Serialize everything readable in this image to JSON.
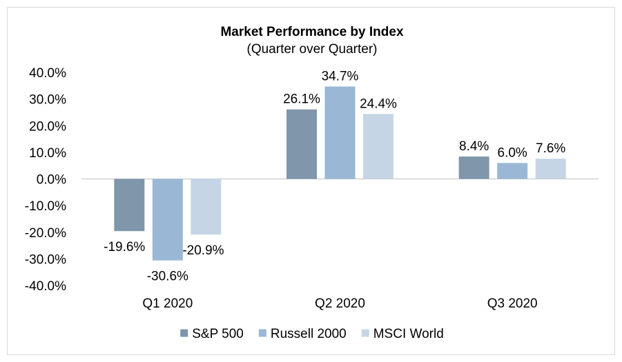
{
  "chart_data": {
    "type": "bar",
    "title": "Market Performance by Index",
    "subtitle": "(Quarter over Quarter)",
    "categories": [
      "Q1 2020",
      "Q2 2020",
      "Q3 2020"
    ],
    "series": [
      {
        "name": "S&P 500",
        "color": "#7f96ab",
        "values": [
          -19.6,
          26.1,
          8.4
        ],
        "labels": [
          "-19.6%",
          "26.1%",
          "8.4%"
        ]
      },
      {
        "name": "Russell 2000",
        "color": "#9ab8d6",
        "values": [
          -30.6,
          34.7,
          6.0
        ],
        "labels": [
          "-30.6%",
          "34.7%",
          "6.0%"
        ]
      },
      {
        "name": "MSCI World",
        "color": "#c5d5e6",
        "values": [
          -20.9,
          24.4,
          7.6
        ],
        "labels": [
          "-20.9%",
          "24.4%",
          "7.6%"
        ]
      }
    ],
    "y_ticks": [
      "40.0%",
      "30.0%",
      "20.0%",
      "10.0%",
      "0.0%",
      "-10.0%",
      "-20.0%",
      "-30.0%",
      "-40.0%"
    ],
    "ylim": [
      -40,
      40
    ],
    "grid": false,
    "legend_position": "bottom",
    "xlabel": "",
    "ylabel": ""
  }
}
